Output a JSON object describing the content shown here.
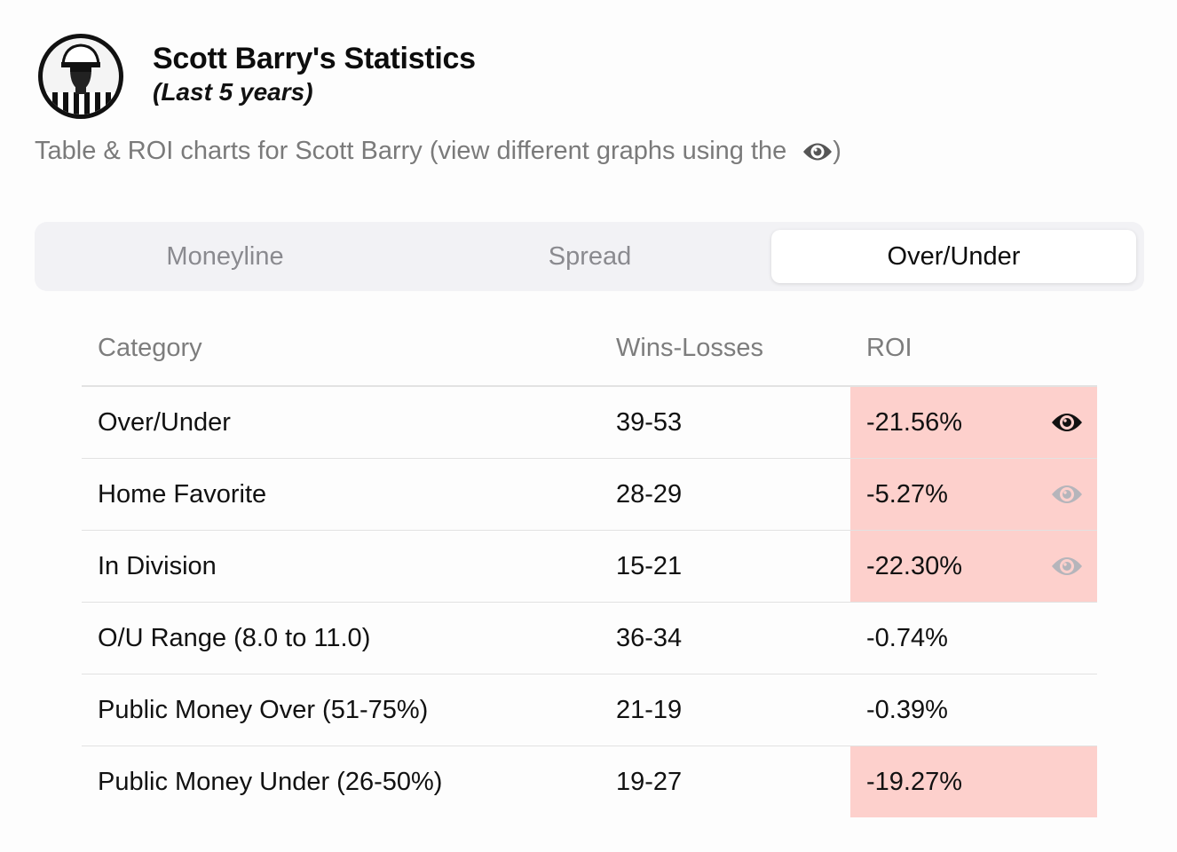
{
  "header": {
    "title": "Scott Barry's Statistics",
    "subtitle": "(Last 5 years)",
    "avatar_icon": "referee-avatar-icon"
  },
  "description": {
    "text": "Table & ROI charts for Scott Barry (view different graphs using the",
    "closing": ")",
    "icon": "eye-icon"
  },
  "tabs": [
    {
      "label": "Moneyline",
      "active": false
    },
    {
      "label": "Spread",
      "active": false
    },
    {
      "label": "Over/Under",
      "active": true
    }
  ],
  "table": {
    "headers": [
      "Category",
      "Wins-Losses",
      "ROI"
    ],
    "rows": [
      {
        "category": "Over/Under",
        "record": "39-53",
        "roi": "-21.56%",
        "highlight": true,
        "eye": "active"
      },
      {
        "category": "Home Favorite",
        "record": "28-29",
        "roi": "-5.27%",
        "highlight": true,
        "eye": "inactive"
      },
      {
        "category": "In Division",
        "record": "15-21",
        "roi": "-22.30%",
        "highlight": true,
        "eye": "inactive"
      },
      {
        "category": "O/U Range (8.0 to 11.0)",
        "record": "36-34",
        "roi": "-0.74%",
        "highlight": false,
        "eye": "none"
      },
      {
        "category": "Public Money Over (51-75%)",
        "record": "21-19",
        "roi": "-0.39%",
        "highlight": false,
        "eye": "none"
      },
      {
        "category": "Public Money Under (26-50%)",
        "record": "19-27",
        "roi": "-19.27%",
        "highlight": true,
        "eye": "none"
      }
    ]
  },
  "colors": {
    "negative_highlight": "#fdd0cc",
    "eye_active": "#111111",
    "eye_inactive": "#b5b5bb",
    "tab_bg": "#f2f2f5"
  }
}
